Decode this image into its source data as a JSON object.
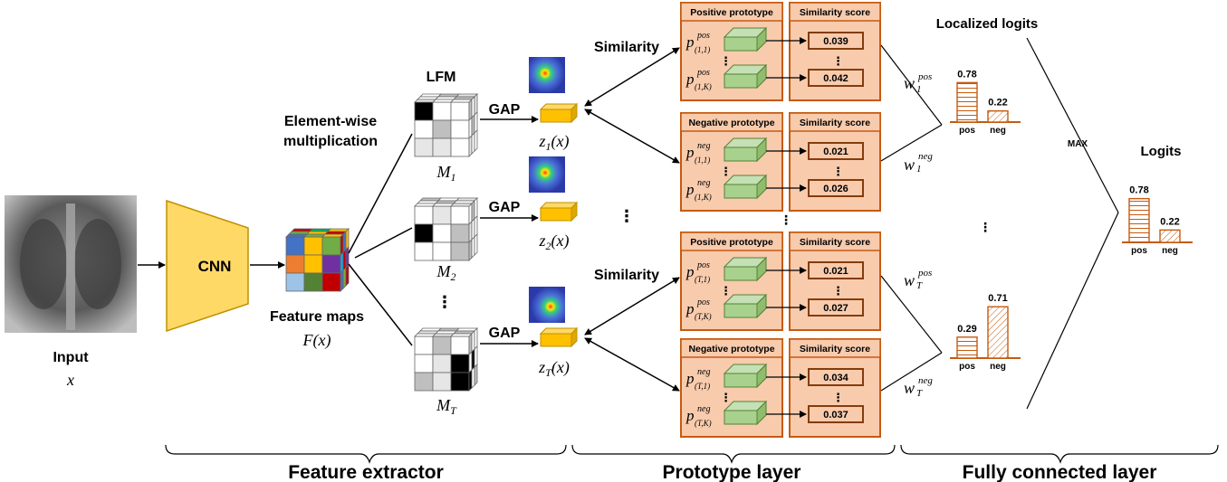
{
  "input": {
    "label": "Input",
    "var": "x"
  },
  "cnn": {
    "label": "CNN"
  },
  "feature_maps": {
    "label": "Feature maps",
    "expr": "F(x)"
  },
  "element_wise": {
    "line1": "Element-wise",
    "line2": "multiplication"
  },
  "lfm": {
    "label": "LFM",
    "masks": [
      {
        "base": "M",
        "sub": "1"
      },
      {
        "base": "M",
        "sub": "2"
      },
      {
        "base": "M",
        "sub": "T"
      }
    ]
  },
  "gap": {
    "label": "GAP",
    "z": [
      {
        "base": "z",
        "sub": "1",
        "arg": "(x)"
      },
      {
        "base": "z",
        "sub": "2",
        "arg": "(x)"
      },
      {
        "base": "z",
        "sub": "T",
        "arg": "(x)"
      }
    ]
  },
  "similarity_label": "Similarity",
  "prototype_blocks": [
    {
      "title": "Positive prototype",
      "score_title": "Similarity score",
      "p1": {
        "sup": "pos",
        "sub": "(1,1)"
      },
      "p2": {
        "sup": "pos",
        "sub": "(1,K)"
      },
      "scores": [
        "0.039",
        "0.042"
      ]
    },
    {
      "title": "Negative prototype",
      "score_title": "Similarity score",
      "p1": {
        "sup": "neg",
        "sub": "(1,1)"
      },
      "p2": {
        "sup": "neg",
        "sub": "(1,K)"
      },
      "scores": [
        "0.021",
        "0.026"
      ]
    },
    {
      "title": "Positive prototype",
      "score_title": "Similarity score",
      "p1": {
        "sup": "pos",
        "sub": "(T,1)"
      },
      "p2": {
        "sup": "pos",
        "sub": "(T,K)"
      },
      "scores": [
        "0.021",
        "0.027"
      ]
    },
    {
      "title": "Negative prototype",
      "score_title": "Similarity score",
      "p1": {
        "sup": "neg",
        "sub": "(T,1)"
      },
      "p2": {
        "sup": "neg",
        "sub": "(T,K)"
      },
      "scores": [
        "0.034",
        "0.037"
      ]
    }
  ],
  "weights": [
    {
      "base": "w",
      "sup": "pos",
      "sub": "1"
    },
    {
      "base": "w",
      "sup": "neg",
      "sub": "1"
    },
    {
      "base": "w",
      "sup": "pos",
      "sub": "T"
    },
    {
      "base": "w",
      "sup": "neg",
      "sub": "T"
    }
  ],
  "localized_logits": {
    "title": "Localized logits",
    "charts": [
      {
        "categories": [
          "pos",
          "neg"
        ],
        "values": [
          0.78,
          0.22
        ],
        "labels": [
          "0.78",
          "0.22"
        ]
      },
      {
        "categories": [
          "pos",
          "neg"
        ],
        "values": [
          0.29,
          0.71
        ],
        "labels": [
          "0.29",
          "0.71"
        ]
      }
    ]
  },
  "max_label": "MAX",
  "logits": {
    "title": "Logits",
    "categories": [
      "pos",
      "neg"
    ],
    "values": [
      0.78,
      0.22
    ],
    "labels": [
      "0.78",
      "0.22"
    ]
  },
  "sections": [
    "Feature extractor",
    "Prototype layer",
    "Fully connected layer"
  ],
  "colors": {
    "accent_box": "#f8cbad",
    "box_border": "#c55a11",
    "cnn_fill": "#ffd966",
    "gap_fill": "#ffc000",
    "proto_fill": "#a9d18e",
    "bar": "#c55a11"
  }
}
